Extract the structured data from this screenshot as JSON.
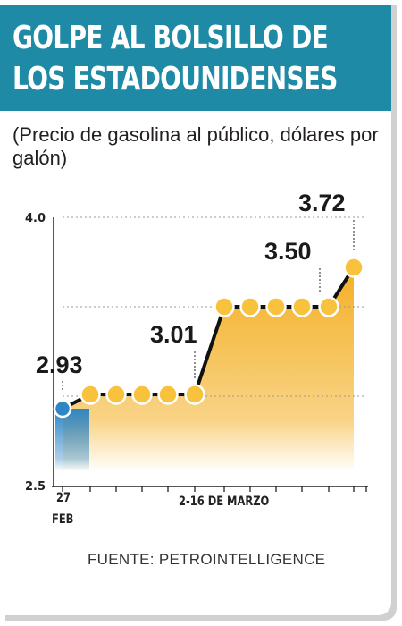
{
  "header": {
    "title_line1": "GOLPE AL BOLSILLO DE",
    "title_line2": "LOS ESTADOUNIDENSES"
  },
  "subtitle": "(Precio de gasolina al público, dólares por galón)",
  "source": "FUENTE: PETROINTELLIGENCE",
  "colors": {
    "header": "#1e8aa6",
    "area": "#f4b025",
    "first_area": "#2f86c4",
    "marker": "#f9c23c",
    "line": "#111111"
  },
  "chart_data": {
    "type": "area",
    "ylim": [
      2.5,
      4.0
    ],
    "yticks": [
      "4.0",
      "2.5"
    ],
    "x_labels": [
      {
        "text": "27",
        "index": 0
      },
      {
        "text": "FEB",
        "index": 0
      },
      {
        "text": "2-16 DE MARZO",
        "index": 6
      }
    ],
    "values": [
      2.93,
      3.01,
      3.01,
      3.01,
      3.01,
      3.01,
      3.5,
      3.5,
      3.5,
      3.5,
      3.5,
      3.72
    ],
    "data_labels": [
      {
        "index": 0,
        "text": "2.93"
      },
      {
        "index": 5,
        "text": "3.01"
      },
      {
        "index": 10,
        "text": "3.50"
      },
      {
        "index": 11,
        "text": "3.72"
      }
    ],
    "grid": true
  }
}
